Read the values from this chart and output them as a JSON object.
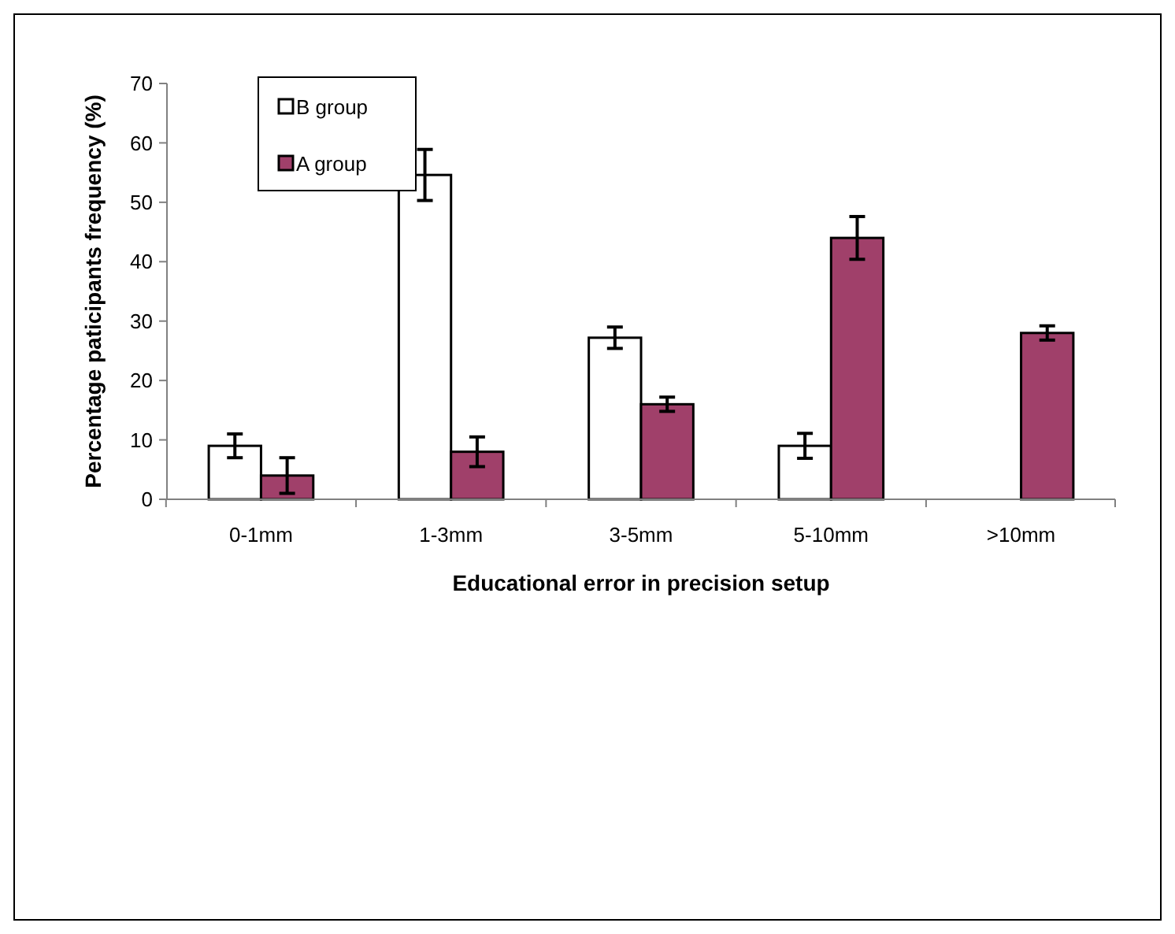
{
  "chart_data": {
    "type": "bar",
    "xlabel": "Educational error in precision setup",
    "ylabel": "Percentage  paticipants frequency (%)",
    "categories": [
      "0-1mm",
      "1-3mm",
      "3-5mm",
      "5-10mm",
      ">10mm"
    ],
    "series": [
      {
        "name": "B group",
        "color": "#ffffff",
        "values": [
          9,
          54.6,
          27.2,
          9,
          null
        ],
        "errors": [
          2,
          4.3,
          1.8,
          2.1,
          null
        ]
      },
      {
        "name": "A group",
        "color": "#a0406a",
        "values": [
          4,
          8,
          16,
          44,
          28
        ],
        "errors": [
          3,
          2.5,
          1.2,
          3.6,
          1.2
        ]
      }
    ],
    "ylim": [
      0,
      70
    ],
    "yticks": [
      0,
      10,
      20,
      30,
      40,
      50,
      60,
      70
    ],
    "legend": "top left",
    "grid": false
  }
}
